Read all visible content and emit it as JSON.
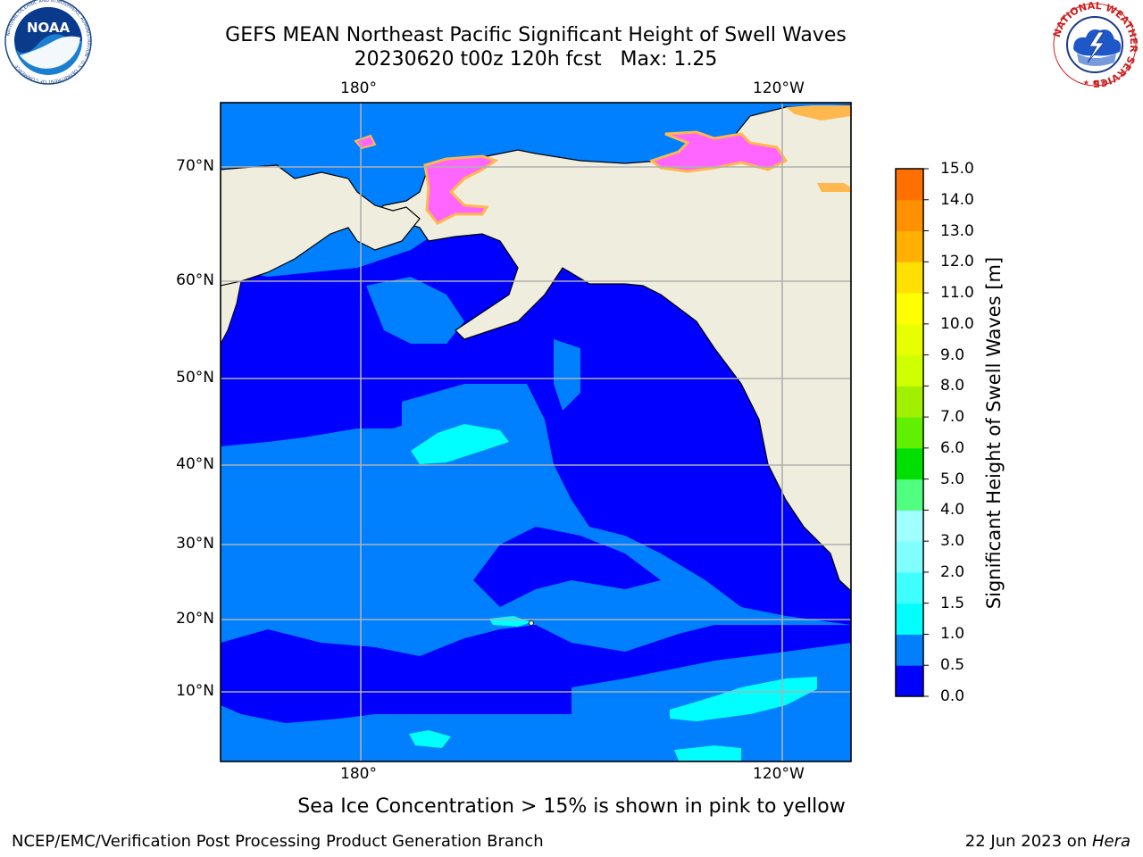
{
  "title": {
    "line1": "GEFS MEAN Northeast Pacific Significant Height of Swell Waves",
    "line2": "20230620 t00z 120h fcst   Max: 1.25"
  },
  "logos": {
    "noaa": {
      "icon": "noaa-logo-icon",
      "text": "NOAA",
      "ring_text": "NATIONAL OCEANIC AND ATMOSPHERIC ADMINISTRATION · U.S. DEPARTMENT OF COMMERCE"
    },
    "nws": {
      "icon": "nws-logo-icon",
      "ring_text": "NATIONAL WEATHER SERVICE"
    }
  },
  "map": {
    "lon_labels_top": [
      "180°",
      "120°W"
    ],
    "lon_labels_bottom": [
      "180°",
      "120°W"
    ],
    "lat_labels": [
      "70°N",
      "60°N",
      "50°N",
      "40°N",
      "30°N",
      "20°N",
      "10°N"
    ],
    "colors": {
      "land": "#efedde",
      "band_0_0.5": "#0000ff",
      "band_0.5_1.0": "#0080ff",
      "band_1.0_1.5": "#00ffff",
      "sea_ice": "#ff66ff",
      "sea_ice_edge": "#ffb84d",
      "grid": "#b0b0b0"
    }
  },
  "colorbar": {
    "ticks": [
      "15.0",
      "14.0",
      "13.0",
      "12.0",
      "11.0",
      "10.0",
      "9.0",
      "8.0",
      "7.0",
      "6.0",
      "5.0",
      "4.0",
      "3.0",
      "2.0",
      "1.5",
      "1.0",
      "0.5",
      "0.0"
    ],
    "colors_bottom_to_top": [
      "#0000ff",
      "#0080ff",
      "#00ffff",
      "#40ffff",
      "#80ffff",
      "#a0ffff",
      "#50ff80",
      "#00e000",
      "#60f000",
      "#a0f000",
      "#d0ff00",
      "#e8ff00",
      "#ffff00",
      "#ffe000",
      "#ffb000",
      "#ff9000",
      "#ff7000",
      "#ff4000",
      "#ff0000"
    ],
    "label": "Significant Height of Swell Waves [m]"
  },
  "note": "Sea Ice Concentration > 15% is shown in pink to yellow",
  "footer": {
    "left": "NCEP/EMC/Verification Post Processing Product Generation Branch",
    "right_prefix": "22 Jun 2023 on ",
    "right_machine": "Hera"
  }
}
